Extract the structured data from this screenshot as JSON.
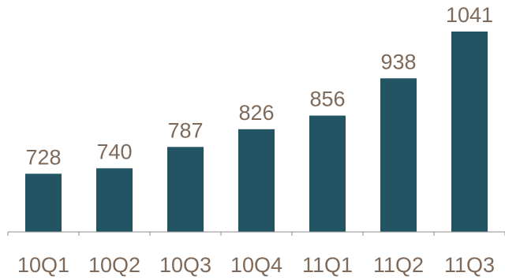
{
  "chart_data": {
    "type": "bar",
    "categories": [
      "10Q1",
      "10Q2",
      "10Q3",
      "10Q4",
      "11Q1",
      "11Q2",
      "11Q3"
    ],
    "values": [
      728,
      740,
      787,
      826,
      856,
      938,
      1041
    ],
    "title": "",
    "xlabel": "",
    "ylabel": "",
    "ylim": [
      600,
      1041
    ],
    "grid": false,
    "legend": "none",
    "colors": {
      "bar": "#235464",
      "text": "#7f6a59",
      "axis": "#8c8c8c"
    }
  }
}
